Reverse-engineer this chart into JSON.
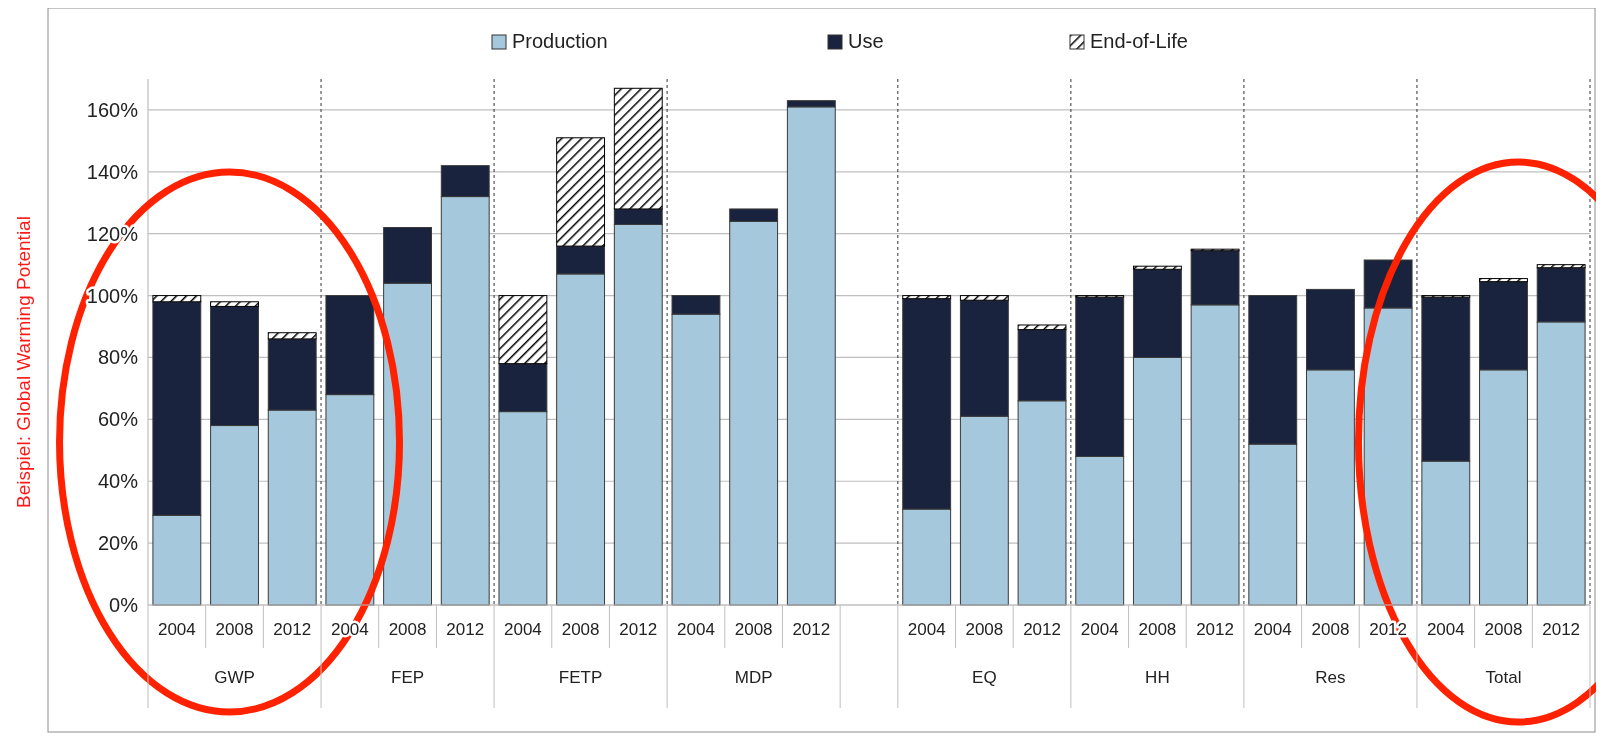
{
  "chart_data": {
    "type": "bar",
    "stacked": true,
    "ylabel": "Beispiel: Global Warming Potential",
    "categories": [
      "2004",
      "2008",
      "2012",
      "2004",
      "2008",
      "2012",
      "2004",
      "2008",
      "2012",
      "2004",
      "2008",
      "2012",
      null,
      "2004",
      "2008",
      "2012",
      "2004",
      "2008",
      "2012",
      "2004",
      "2008",
      "2012",
      "2004",
      "2008",
      "2012"
    ],
    "series": [
      {
        "name": "Production",
        "color": "#a6c8dc",
        "values": [
          29,
          58,
          63,
          68,
          104,
          132,
          62.5,
          107,
          123,
          94,
          124,
          161,
          null,
          31,
          61,
          66,
          48,
          80,
          97,
          52,
          76,
          96,
          46.5,
          76,
          91.5
        ]
      },
      {
        "name": "Use",
        "color": "#1a233d",
        "values": [
          69,
          38.5,
          23,
          32,
          18,
          10,
          15.5,
          9,
          5,
          6,
          4,
          2,
          null,
          68,
          37.5,
          23,
          51.5,
          28.5,
          17.5,
          48,
          26,
          15.5,
          53,
          28.5,
          17.5
        ]
      },
      {
        "name": "End-of-Life",
        "color": "#000000",
        "values": [
          2,
          1.5,
          2,
          0,
          0,
          0,
          22,
          35,
          39,
          0,
          0,
          0,
          null,
          1,
          1.5,
          1.5,
          0.5,
          1,
          0.5,
          0,
          0,
          0,
          0.5,
          1,
          1
        ]
      }
    ],
    "annotations": [
      "GWP",
      "FEP",
      "FETP",
      "MDP",
      "EQ",
      "HH",
      "Res",
      "Total"
    ],
    "ylim": [
      0,
      170
    ],
    "yticks": [
      {
        "value": 0,
        "label": "0%"
      },
      {
        "value": 20,
        "label": "20%"
      },
      {
        "value": 40,
        "label": "40%"
      },
      {
        "value": 60,
        "label": "60%"
      },
      {
        "value": 80,
        "label": "80%"
      },
      {
        "value": 100,
        "label": "100%"
      },
      {
        "value": 120,
        "label": "120%"
      },
      {
        "value": 140,
        "label": "140%"
      },
      {
        "value": 160,
        "label": "160%"
      }
    ],
    "grid": "y",
    "legend": "top"
  }
}
